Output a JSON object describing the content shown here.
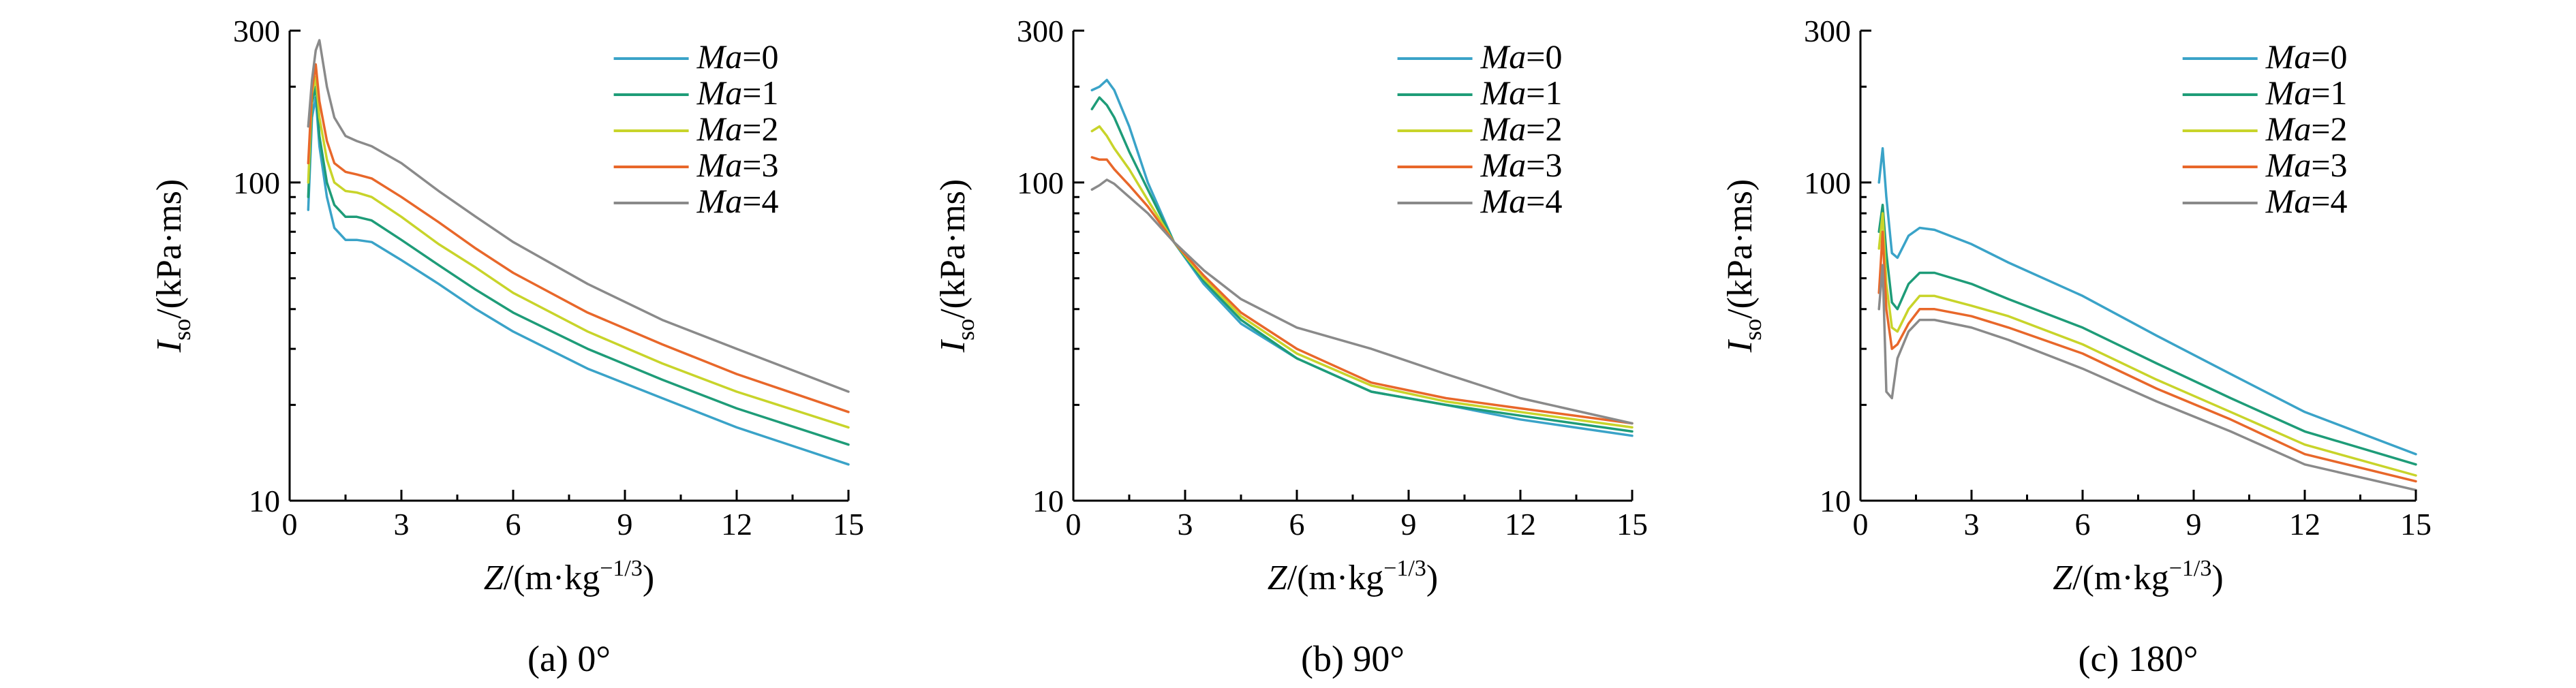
{
  "colors": {
    "Ma=0": "#3AA3C8",
    "Ma=1": "#1E9C78",
    "Ma=2": "#C8D42A",
    "Ma=3": "#E8672A",
    "Ma=4": "#8A8A8A"
  },
  "chart_data": [
    {
      "type": "line",
      "caption": "(a) 0°",
      "xlabel": "Z/(m·kg^-1/3)",
      "ylabel": "Iso/(kPa·ms)",
      "xlim": [
        0,
        15
      ],
      "ylim": [
        10,
        300
      ],
      "yscale": "log",
      "xticks": [
        "0",
        "3",
        "6",
        "9",
        "12",
        "15"
      ],
      "yticks": [
        "10",
        "100",
        "300"
      ],
      "legend_position": "top-right",
      "series": [
        {
          "name": "Ma=0",
          "x": [
            0.5,
            0.6,
            0.7,
            0.8,
            1.0,
            1.2,
            1.5,
            1.8,
            2.2,
            3,
            4,
            5,
            6,
            8,
            10,
            12,
            15
          ],
          "y": [
            82,
            160,
            185,
            130,
            90,
            72,
            66,
            66,
            65,
            57,
            48,
            40,
            34,
            26,
            21,
            17,
            13
          ]
        },
        {
          "name": "Ma=1",
          "x": [
            0.5,
            0.6,
            0.7,
            0.8,
            1.0,
            1.2,
            1.5,
            1.8,
            2.2,
            3,
            4,
            5,
            6,
            8,
            10,
            12,
            15
          ],
          "y": [
            90,
            178,
            200,
            140,
            100,
            85,
            78,
            78,
            76,
            66,
            55,
            46,
            39,
            30,
            24,
            19.5,
            15
          ]
        },
        {
          "name": "Ma=2",
          "x": [
            0.5,
            0.6,
            0.7,
            0.8,
            1.0,
            1.2,
            1.5,
            1.8,
            2.2,
            3,
            4,
            5,
            6,
            8,
            10,
            12,
            15
          ],
          "y": [
            100,
            190,
            215,
            160,
            118,
            100,
            94,
            93,
            90,
            78,
            64,
            54,
            45,
            34,
            27,
            22,
            17
          ]
        },
        {
          "name": "Ma=3",
          "x": [
            0.5,
            0.6,
            0.7,
            0.8,
            1.0,
            1.2,
            1.5,
            1.8,
            2.2,
            3,
            4,
            5,
            6,
            8,
            10,
            12,
            15
          ],
          "y": [
            115,
            195,
            235,
            180,
            135,
            115,
            108,
            106,
            103,
            90,
            75,
            62,
            52,
            39,
            31,
            25,
            19
          ]
        },
        {
          "name": "Ma=4",
          "x": [
            0.5,
            0.6,
            0.7,
            0.8,
            1.0,
            1.2,
            1.5,
            1.8,
            2.2,
            3,
            4,
            5,
            6,
            8,
            10,
            12,
            15
          ],
          "y": [
            150,
            210,
            260,
            280,
            200,
            160,
            140,
            135,
            130,
            115,
            94,
            78,
            65,
            48,
            37,
            30,
            22
          ]
        }
      ]
    },
    {
      "type": "line",
      "caption": "(b) 90°",
      "xlabel": "Z/(m·kg^-1/3)",
      "ylabel": "Iso/(kPa·ms)",
      "xlim": [
        0,
        15
      ],
      "ylim": [
        10,
        300
      ],
      "yscale": "log",
      "xticks": [
        "0",
        "3",
        "6",
        "9",
        "12",
        "15"
      ],
      "yticks": [
        "10",
        "100",
        "300"
      ],
      "legend_position": "top-right",
      "series": [
        {
          "name": "Ma=0",
          "x": [
            0.5,
            0.7,
            0.9,
            1.1,
            1.5,
            2,
            2.7,
            3.5,
            4.5,
            6,
            8,
            10,
            12,
            15
          ],
          "y": [
            195,
            200,
            210,
            195,
            150,
            100,
            65,
            48,
            36,
            28,
            22,
            20,
            18,
            16
          ]
        },
        {
          "name": "Ma=1",
          "x": [
            0.5,
            0.7,
            0.9,
            1.1,
            1.5,
            2,
            2.7,
            3.5,
            4.5,
            6,
            8,
            10,
            12,
            15
          ],
          "y": [
            170,
            185,
            175,
            160,
            125,
            95,
            65,
            49,
            37,
            28,
            22,
            20,
            18.5,
            16.5
          ]
        },
        {
          "name": "Ma=2",
          "x": [
            0.5,
            0.7,
            0.9,
            1.1,
            1.5,
            2,
            2.7,
            3.5,
            4.5,
            6,
            8,
            10,
            12,
            15
          ],
          "y": [
            145,
            150,
            140,
            128,
            110,
            88,
            65,
            50,
            38,
            29,
            23,
            20.5,
            19,
            17
          ]
        },
        {
          "name": "Ma=3",
          "x": [
            0.5,
            0.7,
            0.9,
            1.1,
            1.5,
            2,
            2.7,
            3.5,
            4.5,
            6,
            8,
            10,
            12,
            15
          ],
          "y": [
            120,
            118,
            118,
            110,
            98,
            84,
            65,
            51,
            39,
            30,
            23.5,
            21,
            19.5,
            17.5
          ]
        },
        {
          "name": "Ma=4",
          "x": [
            0.5,
            0.7,
            0.9,
            1.1,
            1.5,
            2,
            2.7,
            3.5,
            4.5,
            6,
            8,
            10,
            12,
            15
          ],
          "y": [
            95,
            98,
            102,
            99,
            90,
            80,
            65,
            53,
            43,
            35,
            30,
            25,
            21,
            17.5
          ]
        }
      ]
    },
    {
      "type": "line",
      "caption": "(c) 180°",
      "xlabel": "Z/(m·kg^-1/3)",
      "ylabel": "Iso/(kPa·ms)",
      "xlim": [
        0,
        15
      ],
      "ylim": [
        10,
        300
      ],
      "yscale": "log",
      "xticks": [
        "0",
        "3",
        "6",
        "9",
        "12",
        "15"
      ],
      "yticks": [
        "10",
        "100",
        "300"
      ],
      "legend_position": "top-right",
      "series": [
        {
          "name": "Ma=0",
          "x": [
            0.5,
            0.6,
            0.7,
            0.85,
            1.0,
            1.3,
            1.6,
            2,
            3,
            4,
            6,
            8,
            10,
            12,
            15
          ],
          "y": [
            100,
            128,
            90,
            60,
            58,
            68,
            72,
            71,
            64,
            56,
            44,
            33,
            25,
            19,
            14
          ]
        },
        {
          "name": "Ma=1",
          "x": [
            0.5,
            0.6,
            0.7,
            0.85,
            1.0,
            1.3,
            1.6,
            2,
            3,
            4,
            6,
            8,
            10,
            12,
            15
          ],
          "y": [
            70,
            85,
            60,
            42,
            40,
            48,
            52,
            52,
            48,
            43,
            35,
            27,
            21,
            16.5,
            13
          ]
        },
        {
          "name": "Ma=2",
          "x": [
            0.5,
            0.6,
            0.7,
            0.85,
            1.0,
            1.3,
            1.6,
            2,
            3,
            4,
            6,
            8,
            10,
            12,
            15
          ],
          "y": [
            62,
            80,
            48,
            35,
            34,
            40,
            44,
            44,
            41,
            38,
            31,
            24,
            19,
            15,
            12
          ]
        },
        {
          "name": "Ma=3",
          "x": [
            0.5,
            0.6,
            0.7,
            0.85,
            1.0,
            1.3,
            1.6,
            2,
            3,
            4,
            6,
            8,
            10,
            12,
            15
          ],
          "y": [
            45,
            70,
            40,
            30,
            31,
            36,
            40,
            40,
            38,
            35,
            29,
            22.5,
            18,
            14,
            11.5
          ]
        },
        {
          "name": "Ma=4",
          "x": [
            0.5,
            0.6,
            0.7,
            0.85,
            1.0,
            1.3,
            1.6,
            2,
            3,
            4,
            6,
            8,
            10,
            12,
            15
          ],
          "y": [
            40,
            55,
            22,
            21,
            28,
            34,
            37,
            37,
            35,
            32,
            26,
            20.5,
            16.5,
            13,
            10.8
          ]
        }
      ]
    }
  ]
}
